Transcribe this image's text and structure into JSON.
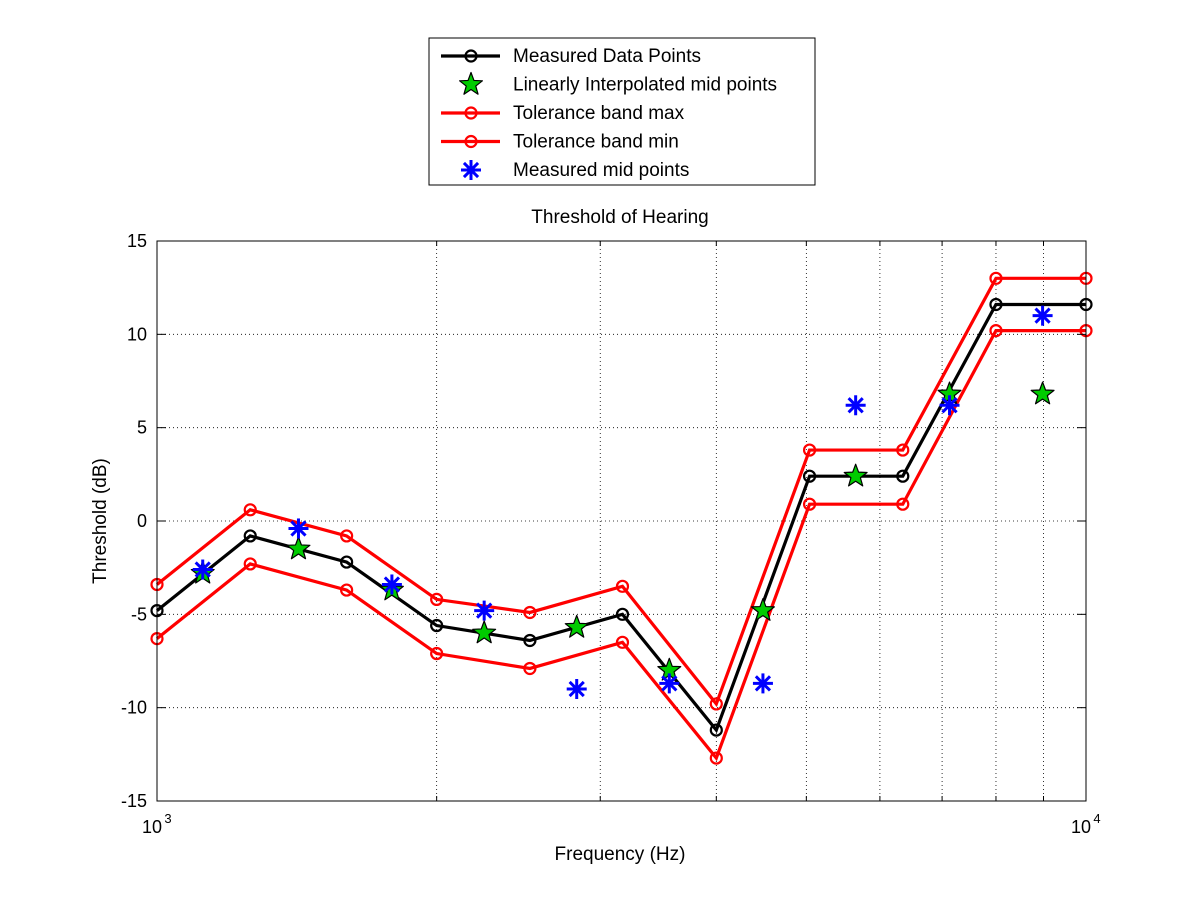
{
  "chart_data": {
    "type": "line",
    "title": "Threshold of Hearing",
    "xlabel": "Frequency (Hz)",
    "ylabel": "Threshold (dB)",
    "xscale": "log",
    "xlim": [
      1000,
      10000
    ],
    "ylim": [
      -15,
      15
    ],
    "yticks": [
      -15,
      -10,
      -5,
      0,
      5,
      10,
      15
    ],
    "ytick_labels": [
      "-15",
      "-10",
      "-5",
      "0",
      "5",
      "10",
      "15"
    ],
    "xticks_major": [
      {
        "value": 1000,
        "base": "10",
        "exp": "3"
      },
      {
        "value": 10000,
        "base": "10",
        "exp": "4"
      }
    ],
    "xgrid_minor": [
      2000,
      3000,
      4000,
      5000,
      6000,
      7000,
      8000,
      9000
    ],
    "grid": true,
    "grid_style": "dotted",
    "legend_position": "top-center (outside plot)",
    "series": [
      {
        "name": "Measured Data Points",
        "style": "line-circle",
        "color": "#000000",
        "x": [
          1000,
          1260,
          1600,
          2000,
          2520,
          3170,
          4000,
          5040,
          6350,
          8000,
          10000
        ],
        "y": [
          -4.8,
          -0.8,
          -2.2,
          -5.6,
          -6.4,
          -5.0,
          -11.2,
          2.4,
          2.4,
          11.6,
          11.6
        ]
      },
      {
        "name": "Linearly Interpolated mid points",
        "style": "star-marker",
        "color": "#00cc00",
        "x": [
          1120,
          1420,
          1790,
          2250,
          2830,
          3560,
          4490,
          5650,
          7130,
          8980
        ],
        "y": [
          -2.8,
          -1.5,
          -3.7,
          -6.0,
          -5.7,
          -8.0,
          -4.8,
          2.4,
          6.8,
          6.8
        ]
      },
      {
        "name": "Tolerance band max",
        "style": "line-circle",
        "color": "#ff0000",
        "x": [
          1000,
          1260,
          1600,
          2000,
          2520,
          3170,
          4000,
          5040,
          6350,
          8000,
          10000
        ],
        "y": [
          -3.4,
          0.6,
          -0.8,
          -4.2,
          -4.9,
          -3.5,
          -9.8,
          3.8,
          3.8,
          13.0,
          13.0
        ]
      },
      {
        "name": "Tolerance band min",
        "style": "line-circle",
        "color": "#ff0000",
        "x": [
          1000,
          1260,
          1600,
          2000,
          2520,
          3170,
          4000,
          5040,
          6350,
          8000,
          10000
        ],
        "y": [
          -6.3,
          -2.3,
          -3.7,
          -7.1,
          -7.9,
          -6.5,
          -12.7,
          0.9,
          0.9,
          10.2,
          10.2
        ]
      },
      {
        "name": "Measured mid points",
        "style": "asterisk-marker",
        "color": "#0000ff",
        "x": [
          1120,
          1420,
          1790,
          2250,
          2830,
          3560,
          4490,
          5650,
          7130,
          8980
        ],
        "y": [
          -2.6,
          -0.4,
          -3.4,
          -4.8,
          -9.0,
          -8.7,
          -8.7,
          6.2,
          6.2,
          11.0
        ]
      }
    ]
  }
}
